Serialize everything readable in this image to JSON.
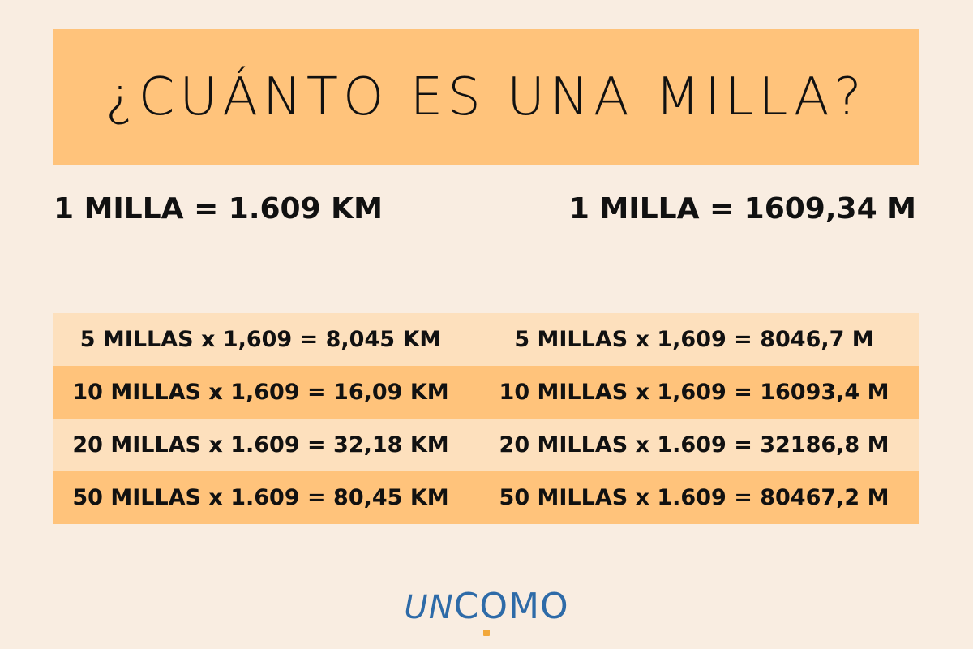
{
  "title": "¿CUÁNTO ES UNA MILLA?",
  "equivalences": {
    "km": "1 MILLA = 1.609 KM",
    "m": "1 MILLA = 1609,34 M"
  },
  "table": {
    "rows": [
      {
        "km": "5 MILLAS x 1,609 = 8,045 KM",
        "m": "5 MILLAS x 1,609 = 8046,7 M"
      },
      {
        "km": "10 MILLAS x 1,609 = 16,09 KM",
        "m": "10 MILLAS x 1,609 = 16093,4 M"
      },
      {
        "km": "20 MILLAS x 1.609 = 32,18 KM",
        "m": "20 MILLAS x 1.609 = 32186,8 M"
      },
      {
        "km": "50 MILLAS x 1.609 = 80,45 KM",
        "m": "50 MILLAS x 1.609 = 80467,2 M"
      }
    ]
  },
  "logo": {
    "prefix": "UN",
    "suffix": "COMO"
  },
  "colors": {
    "background": "#f9ede1",
    "banner": "#ffc37b",
    "row_light": "#fde0bd",
    "row_dark": "#ffc37b",
    "logo_blue": "#2e6ba8",
    "logo_accent": "#f2a83b"
  }
}
